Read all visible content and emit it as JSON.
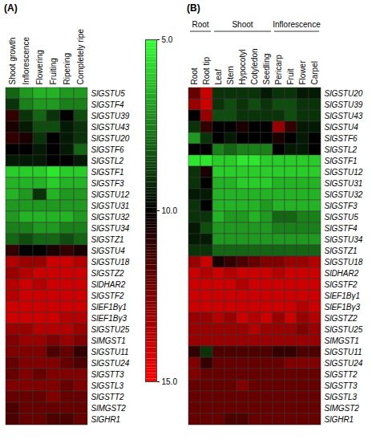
{
  "chart_data": [
    {
      "type": "heatmap",
      "panel": "(A)",
      "columns": [
        "Shoot growth",
        "Inflorescence",
        "Flowering",
        "Fruiting",
        "Ripening",
        "Completely ripe"
      ],
      "rows": [
        "SlGSTU5",
        "SlGSTF4",
        "SlGSTU39",
        "SlGSTU43",
        "SlGSTU20",
        "SlGSTF6",
        "SlGSTL2",
        "SlGSTF1",
        "SlGSTF3",
        "SlGSTU12",
        "SlGSTU31",
        "SlGSTU32",
        "SlGSTU34",
        "SlGSTZ1",
        "SlGSTU4",
        "SlGSTU18",
        "SlGSTZ2",
        "SlDHAR2",
        "SlGSTF2",
        "SlEF1Bγ1",
        "SlEF1Bγ3",
        "SlGSTU25",
        "SlMGST1",
        "SlGSTU11",
        "SlGSTU24",
        "SlGSTT3",
        "SlGSTL3",
        "SlGSTT2",
        "SlMGST2",
        "SlGHR1"
      ],
      "cells": [
        [
          8,
          7,
          6.5,
          6.5,
          7,
          7
        ],
        [
          9,
          7.5,
          7,
          7,
          7.5,
          7.5
        ],
        [
          11,
          9,
          8,
          9,
          10,
          8.5
        ],
        [
          10.5,
          9.5,
          8.5,
          8.5,
          9.5,
          9
        ],
        [
          11,
          10.5,
          9,
          10,
          9.5,
          9
        ],
        [
          10,
          10,
          9.5,
          10,
          9.5,
          8
        ],
        [
          9.5,
          9.5,
          9.5,
          10,
          10,
          9.5
        ],
        [
          6,
          6,
          6,
          5.5,
          6,
          6
        ],
        [
          6.5,
          6.5,
          6.5,
          6,
          6.5,
          6.5
        ],
        [
          6.5,
          7,
          9,
          6.5,
          7,
          7
        ],
        [
          7,
          7,
          7,
          7,
          7,
          7
        ],
        [
          7,
          6.5,
          6.5,
          6.5,
          6.5,
          7
        ],
        [
          7.5,
          7.5,
          7,
          7,
          7.5,
          7.5
        ],
        [
          8,
          8.5,
          8,
          8,
          8.5,
          8
        ],
        [
          11,
          10,
          10,
          10.5,
          11,
          10.5
        ],
        [
          13.5,
          13,
          13,
          14,
          14,
          13.5
        ],
        [
          13,
          13.5,
          14,
          14,
          14,
          14
        ],
        [
          13.5,
          14,
          13.5,
          14,
          14,
          14
        ],
        [
          13.5,
          14,
          14,
          14,
          14,
          14
        ],
        [
          14,
          14,
          14,
          14,
          14,
          14
        ],
        [
          14,
          14,
          14,
          14,
          13.5,
          13.5
        ],
        [
          13,
          13,
          13.5,
          13.5,
          13.5,
          13
        ],
        [
          12.5,
          13,
          13,
          12.5,
          13,
          12.5
        ],
        [
          12.5,
          12.5,
          12.5,
          11.5,
          12,
          11
        ],
        [
          12,
          12.5,
          12.5,
          12.5,
          12,
          11.5
        ],
        [
          12,
          12.5,
          12,
          12.5,
          12.5,
          12.5
        ],
        [
          12.5,
          12.5,
          12.5,
          12.5,
          12,
          12.5
        ],
        [
          12,
          12,
          12,
          12.5,
          12,
          12
        ],
        [
          11.5,
          12,
          12,
          12,
          12,
          12
        ],
        [
          11.5,
          12,
          12,
          11.5,
          11.5,
          12
        ]
      ],
      "colorbar": {
        "range": [
          5,
          15
        ],
        "stops": [
          5,
          10,
          15
        ],
        "colors": [
          "#33ff33",
          "#000000",
          "#ff0000"
        ],
        "ticks": [
          {
            "value": 5,
            "label": "5.0"
          },
          {
            "value": 10,
            "label": "10.0"
          },
          {
            "value": 15,
            "label": "15.0"
          }
        ]
      }
    },
    {
      "type": "heatmap",
      "panel": "(B)",
      "column_groups": [
        {
          "name": "Root",
          "columns": [
            "Root",
            "Root tip"
          ]
        },
        {
          "name": "Shoot",
          "columns": [
            "Leaf",
            "Stem",
            "Hypocotyl",
            "Cotyledon",
            "Seedling"
          ]
        },
        {
          "name": "Inflorescence",
          "columns": [
            "Pericarp",
            "Fruit",
            "Flower",
            "Carpel"
          ]
        }
      ],
      "columns": [
        "Root",
        "Root tip",
        "Leaf",
        "Stem",
        "Hypocotyl",
        "Cotyledon",
        "Seedling",
        "Pericarp",
        "Fruit",
        "Flower",
        "Carpel"
      ],
      "rows": [
        "SlGSTU20",
        "SlGSTU39",
        "SlGSTU43",
        "SlGSTU4",
        "SlGSTF6",
        "SlGSTL2",
        "SlGSTF1",
        "SlGSTU12",
        "SlGSTU31",
        "SlGSTU32",
        "SlGSTF3",
        "SlGSTU5",
        "SlGSTF4",
        "SlGSTU34",
        "SlGSTZ1",
        "SlGSTU18",
        "SlDHAR2",
        "SlGSTF2",
        "SlEF1Bγ1",
        "SlEF1Bγ3",
        "SlGSTZ2",
        "SlGSTU25",
        "SlMGST1",
        "SlGSTU11",
        "SlGSTU24",
        "SlGSTT2",
        "SlGSTT3",
        "SlGSTL3",
        "SlMGST2",
        "SlGHR1"
      ],
      "cells": [
        [
          12,
          14,
          9,
          9,
          9,
          9,
          9.5,
          9,
          9,
          9.5,
          9.5
        ],
        [
          13,
          14,
          9,
          8.5,
          9,
          8.5,
          9,
          8.5,
          8.5,
          9,
          9
        ],
        [
          10,
          13,
          8.5,
          8.5,
          9,
          9,
          9,
          9,
          8.5,
          9,
          9
        ],
        [
          9,
          11,
          10,
          10,
          10.5,
          10,
          10,
          13,
          11,
          9.5,
          9.5
        ],
        [
          7,
          9,
          10,
          9.5,
          10,
          10,
          10,
          10.5,
          10,
          9.5,
          10
        ],
        [
          10,
          10,
          7.5,
          8,
          7.5,
          7.5,
          7.5,
          10,
          9.5,
          9.5,
          10
        ],
        [
          5.5,
          5.5,
          6,
          6,
          5.5,
          5.5,
          6,
          6,
          6,
          6,
          6
        ],
        [
          9,
          10.5,
          6,
          6,
          6,
          6,
          6,
          6,
          6,
          6,
          6
        ],
        [
          9,
          10,
          6.5,
          6.5,
          6,
          6,
          6,
          6.5,
          6.5,
          6.5,
          6.5
        ],
        [
          9.5,
          9.5,
          6.5,
          6.5,
          6.5,
          6.5,
          6.5,
          6.5,
          6.5,
          6.5,
          6.5
        ],
        [
          9,
          10,
          6.5,
          6.5,
          6.5,
          6.5,
          7,
          6.5,
          6.5,
          6.5,
          6.5
        ],
        [
          9,
          9,
          6.5,
          7,
          7,
          6.5,
          7,
          8,
          8,
          7.5,
          7.5
        ],
        [
          9.5,
          8.5,
          7,
          7,
          7,
          7,
          7,
          7.5,
          7.5,
          7.5,
          7.5
        ],
        [
          9.5,
          9.5,
          7,
          7,
          7,
          7,
          7,
          7,
          7,
          7,
          7
        ],
        [
          9,
          9,
          8,
          8,
          8,
          8,
          8,
          8,
          8,
          8,
          8
        ],
        [
          13,
          14,
          10.5,
          11,
          11.5,
          12,
          12.5,
          12.5,
          13,
          13,
          13.5
        ],
        [
          14,
          13.5,
          14,
          13.5,
          14,
          14,
          14,
          13.5,
          14,
          14,
          14
        ],
        [
          14,
          14,
          14,
          14,
          13.5,
          14,
          14,
          14,
          14,
          14,
          14
        ],
        [
          14,
          14,
          14,
          14,
          14,
          14,
          14,
          14,
          14,
          14,
          14
        ],
        [
          14,
          14,
          14,
          14,
          14,
          14,
          14,
          14,
          14,
          13.5,
          14
        ],
        [
          13,
          13,
          13.5,
          13,
          14,
          13.5,
          14,
          13,
          14,
          13,
          13.5
        ],
        [
          13,
          13,
          13,
          13,
          13,
          13.5,
          13,
          13,
          13,
          12.5,
          13
        ],
        [
          13,
          13,
          13,
          13,
          13,
          13,
          13,
          13,
          13,
          13,
          13
        ],
        [
          11,
          9,
          11.5,
          11.5,
          11.5,
          11.5,
          11.5,
          11,
          11,
          11.5,
          11.5
        ],
        [
          12.5,
          11,
          12,
          12,
          12,
          12,
          12,
          12,
          12.5,
          12.5,
          12.5
        ],
        [
          12.5,
          12,
          12,
          12,
          12,
          12,
          12,
          12,
          12,
          12,
          12
        ],
        [
          12,
          12,
          12,
          12,
          12.5,
          12,
          12,
          12,
          12,
          12,
          12
        ],
        [
          12,
          12,
          12,
          12,
          12,
          12,
          12,
          12,
          12,
          12,
          12
        ],
        [
          12,
          12,
          12,
          12,
          12,
          12,
          12,
          12,
          12,
          12,
          12
        ],
        [
          12,
          12,
          12,
          11.5,
          11.5,
          12,
          12,
          12,
          12,
          12,
          12
        ]
      ]
    }
  ]
}
